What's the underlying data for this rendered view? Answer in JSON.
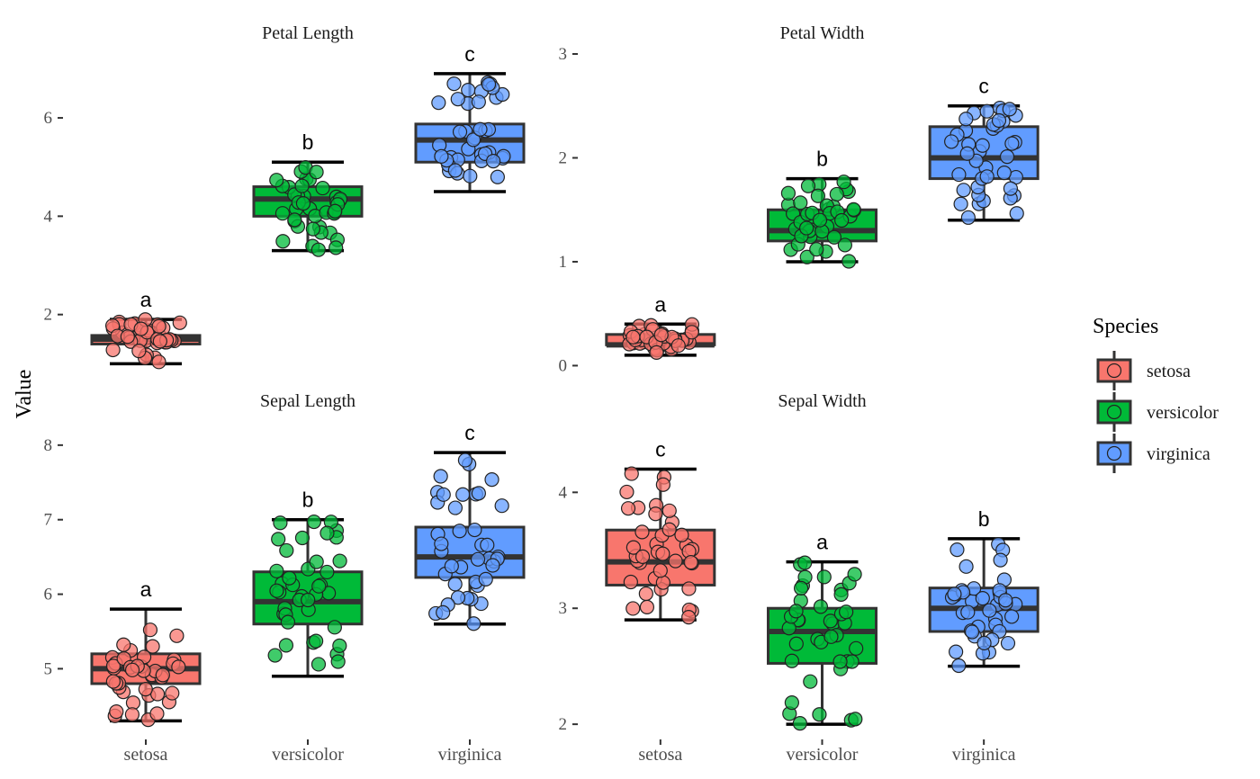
{
  "chart_data": {
    "type": "box",
    "ylabel": "Value",
    "categories": [
      "setosa",
      "versicolor",
      "virginica"
    ],
    "legend": {
      "title": "Species",
      "position": "right",
      "items": [
        {
          "label": "setosa",
          "color": "#F8766D"
        },
        {
          "label": "versicolor",
          "color": "#00BA38"
        },
        {
          "label": "virginica",
          "color": "#619CFF"
        }
      ]
    },
    "facets": [
      {
        "name": "Petal Length",
        "ylim": [
          0.75,
          7.3
        ],
        "yticks": [
          2,
          4,
          6
        ],
        "boxes": [
          {
            "species": "setosa",
            "min": 1.0,
            "q1": 1.4,
            "median": 1.5,
            "q3": 1.575,
            "max": 1.9,
            "letter": "a"
          },
          {
            "species": "versicolor",
            "min": 3.3,
            "q1": 4.0,
            "median": 4.35,
            "q3": 4.6,
            "max": 5.1,
            "letter": "b"
          },
          {
            "species": "virginica",
            "min": 4.5,
            "q1": 5.1,
            "median": 5.55,
            "q3": 5.875,
            "max": 6.9,
            "letter": "c"
          }
        ]
      },
      {
        "name": "Petal Width",
        "ylim": [
          -0.1,
          3.0
        ],
        "yticks": [
          0,
          1,
          2,
          3
        ],
        "boxes": [
          {
            "species": "setosa",
            "min": 0.1,
            "q1": 0.2,
            "median": 0.2,
            "q3": 0.3,
            "max": 0.4,
            "letter": "a"
          },
          {
            "species": "versicolor",
            "min": 1.0,
            "q1": 1.2,
            "median": 1.3,
            "q3": 1.5,
            "max": 1.8,
            "letter": "b"
          },
          {
            "species": "virginica",
            "min": 1.4,
            "q1": 1.8,
            "median": 2.0,
            "q3": 2.3,
            "max": 2.5,
            "letter": "c"
          }
        ]
      },
      {
        "name": "Sepal Length",
        "ylim": [
          4.1,
          8.3
        ],
        "yticks": [
          5,
          6,
          7,
          8
        ],
        "boxes": [
          {
            "species": "setosa",
            "min": 4.3,
            "q1": 4.8,
            "median": 5.0,
            "q3": 5.2,
            "max": 5.8,
            "letter": "a"
          },
          {
            "species": "versicolor",
            "min": 4.9,
            "q1": 5.6,
            "median": 5.9,
            "q3": 6.3,
            "max": 7.0,
            "letter": "b"
          },
          {
            "species": "virginica",
            "min": 5.6,
            "q1": 6.225,
            "median": 6.5,
            "q3": 6.9,
            "max": 7.9,
            "letter": "c"
          }
        ]
      },
      {
        "name": "Sepal Width",
        "ylim": [
          1.9,
          4.6
        ],
        "yticks": [
          2,
          3,
          4
        ],
        "boxes": [
          {
            "species": "setosa",
            "min": 2.9,
            "q1": 3.2,
            "median": 3.4,
            "q3": 3.675,
            "max": 4.2,
            "letter": "c"
          },
          {
            "species": "versicolor",
            "min": 2.0,
            "q1": 2.525,
            "median": 2.8,
            "q3": 3.0,
            "max": 3.4,
            "letter": "a"
          },
          {
            "species": "virginica",
            "min": 2.5,
            "q1": 2.8,
            "median": 3.0,
            "q3": 3.175,
            "max": 3.6,
            "letter": "b"
          }
        ]
      }
    ]
  }
}
